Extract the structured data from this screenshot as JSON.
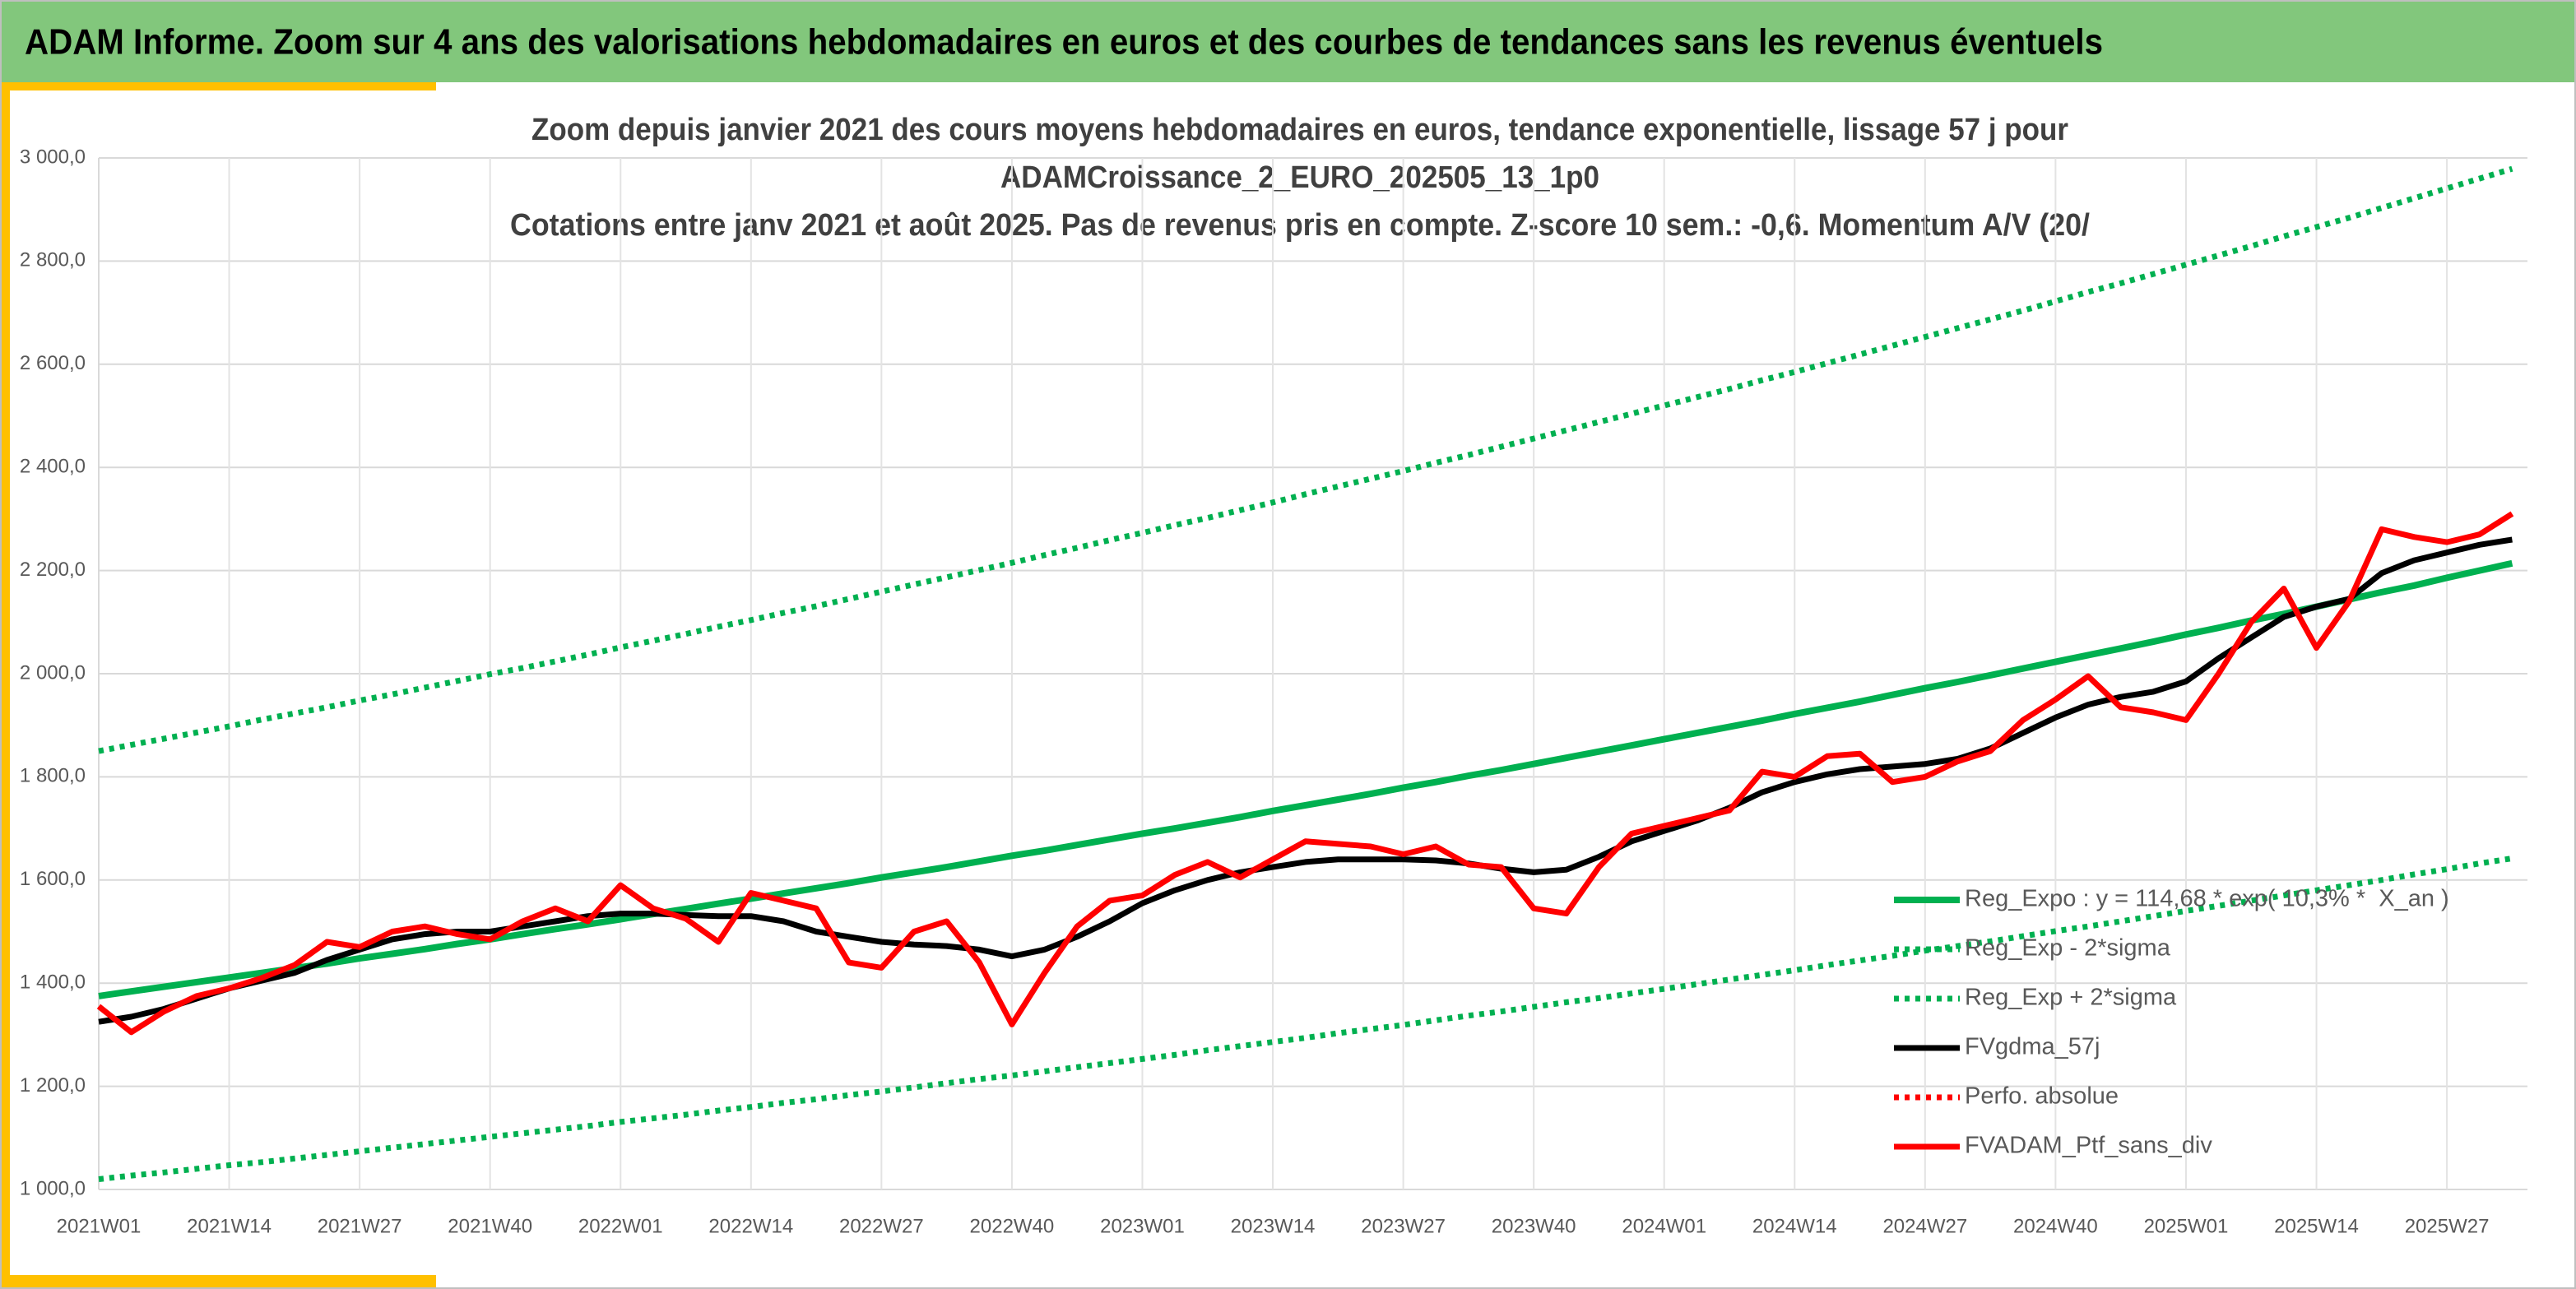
{
  "header": {
    "title": "ADAM Informe. Zoom sur 4 ans des valorisations hebdomadaires en euros et des courbes de tendances sans les revenus éventuels"
  },
  "chart_data": {
    "type": "line",
    "title": [
      "Zoom depuis janvier 2021 des cours moyens hebdomadaires en euros, tendance exponentielle, lissage 57 j pour",
      "ADAMCroissance_2_EURO_202505_13_1p0",
      "Cotations entre janv 2021 et août 2025. Pas de revenus pris en compte. Z-score 10 sem.: -0,6. Momentum A/V (20/"
    ],
    "categories": [
      "2021W01",
      null,
      null,
      null,
      "2021W14",
      null,
      null,
      null,
      "2021W27",
      null,
      null,
      null,
      "2021W40",
      null,
      null,
      null,
      "2022W01",
      null,
      null,
      null,
      "2022W14",
      null,
      null,
      null,
      "2022W27",
      null,
      null,
      null,
      "2022W40",
      null,
      null,
      null,
      "2023W01",
      null,
      null,
      null,
      "2023W14",
      null,
      null,
      null,
      "2023W27",
      null,
      null,
      null,
      "2023W40",
      null,
      null,
      null,
      "2024W01",
      null,
      null,
      null,
      "2024W14",
      null,
      null,
      null,
      "2024W27",
      null,
      null,
      null,
      "2024W40",
      null,
      null,
      null,
      "2025W01",
      null,
      null,
      null,
      "2025W14",
      null,
      null,
      null,
      "2025W27",
      null,
      null
    ],
    "ylim": [
      1000,
      3000
    ],
    "yticks": [
      {
        "value": 1000,
        "label": "1 000,0"
      },
      {
        "value": 1200,
        "label": "1 200,0"
      },
      {
        "value": 1400,
        "label": "1 400,0"
      },
      {
        "value": 1600,
        "label": "1 600,0"
      },
      {
        "value": 1800,
        "label": "1 800,0"
      },
      {
        "value": 2000,
        "label": "2 000,0"
      },
      {
        "value": 2200,
        "label": "2 200,0"
      },
      {
        "value": 2400,
        "label": "2 400,0"
      },
      {
        "value": 2600,
        "label": "2 600,0"
      },
      {
        "value": 2800,
        "label": "2 800,0"
      },
      {
        "value": 3000,
        "label": "3 000,0"
      }
    ],
    "grid": true,
    "legend": "lower right",
    "series": [
      {
        "name": "Reg_Expo : y = 114,68 * exp( 10,3% *  X_an )",
        "color": "#00b050",
        "style": "solid",
        "values": [
          1375,
          1384,
          1393,
          1402,
          1411,
          1420,
          1429,
          1438,
          1448,
          1457,
          1466,
          1476,
          1485,
          1495,
          1505,
          1514,
          1524,
          1534,
          1544,
          1554,
          1564,
          1574,
          1584,
          1594,
          1605,
          1615,
          1625,
          1636,
          1647,
          1657,
          1668,
          1679,
          1690,
          1700,
          1711,
          1722,
          1734,
          1745,
          1756,
          1767,
          1779,
          1790,
          1802,
          1813,
          1825,
          1837,
          1849,
          1861,
          1873,
          1885,
          1897,
          1909,
          1922,
          1934,
          1946,
          1959,
          1972,
          1984,
          1997,
          2010,
          2023,
          2036,
          2049,
          2062,
          2076,
          2089,
          2103,
          2116,
          2130,
          2144,
          2158,
          2171,
          2186,
          2200,
          2214
        ]
      },
      {
        "name": "Reg_Exp - 2*sigma",
        "color": "#00b050",
        "style": "dotted",
        "values": [
          1020,
          1027,
          1033,
          1040,
          1047,
          1053,
          1060,
          1067,
          1074,
          1081,
          1088,
          1095,
          1102,
          1109,
          1116,
          1123,
          1131,
          1138,
          1145,
          1153,
          1160,
          1168,
          1175,
          1183,
          1190,
          1198,
          1206,
          1214,
          1221,
          1229,
          1237,
          1245,
          1253,
          1261,
          1270,
          1278,
          1286,
          1294,
          1303,
          1311,
          1319,
          1328,
          1337,
          1345,
          1354,
          1363,
          1371,
          1380,
          1389,
          1398,
          1407,
          1416,
          1425,
          1435,
          1444,
          1453,
          1463,
          1472,
          1481,
          1491,
          1501,
          1510,
          1520,
          1530,
          1540,
          1550,
          1560,
          1570,
          1580,
          1590,
          1600,
          1611,
          1621,
          1632,
          1642
        ]
      },
      {
        "name": "Reg_Exp + 2*sigma",
        "color": "#00b050",
        "style": "dotted",
        "values": [
          1850,
          1862,
          1874,
          1886,
          1898,
          1911,
          1923,
          1935,
          1948,
          1960,
          1973,
          1986,
          1999,
          2011,
          2024,
          2037,
          2051,
          2064,
          2077,
          2091,
          2104,
          2118,
          2131,
          2145,
          2159,
          2173,
          2187,
          2201,
          2215,
          2230,
          2244,
          2259,
          2273,
          2288,
          2302,
          2317,
          2332,
          2348,
          2363,
          2378,
          2393,
          2409,
          2424,
          2440,
          2456,
          2472,
          2488,
          2504,
          2520,
          2536,
          2552,
          2569,
          2585,
          2602,
          2619,
          2636,
          2653,
          2670,
          2687,
          2704,
          2722,
          2740,
          2757,
          2775,
          2793,
          2811,
          2829,
          2848,
          2866,
          2884,
          2903,
          2922,
          2941,
          2960,
          2979
        ]
      },
      {
        "name": "FVgdma_57j",
        "color": "#000000",
        "style": "solid",
        "values": [
          1325,
          1335,
          1350,
          1370,
          1390,
          1405,
          1420,
          1445,
          1465,
          1485,
          1495,
          1500,
          1500,
          1510,
          1520,
          1530,
          1535,
          1535,
          1532,
          1530,
          1530,
          1520,
          1500,
          1490,
          1480,
          1475,
          1472,
          1465,
          1452,
          1465,
          1490,
          1520,
          1555,
          1580,
          1600,
          1615,
          1625,
          1635,
          1640,
          1640,
          1640,
          1638,
          1632,
          1622,
          1615,
          1620,
          1645,
          1675,
          1695,
          1715,
          1740,
          1770,
          1790,
          1805,
          1815,
          1820,
          1825,
          1835,
          1855,
          1885,
          1915,
          1940,
          1955,
          1965,
          1985,
          2030,
          2070,
          2110,
          2130,
          2145,
          2195,
          2220,
          2235,
          2250,
          2260
        ]
      },
      {
        "name": "Perfo. absolue",
        "color": "#ff0000",
        "style": "dotted"
      },
      {
        "name": "FVADAM_Ptf_sans_div",
        "color": "#ff0000",
        "style": "solid",
        "values": [
          1355,
          1305,
          1345,
          1375,
          1390,
          1410,
          1435,
          1480,
          1470,
          1500,
          1510,
          1495,
          1485,
          1520,
          1545,
          1520,
          1590,
          1545,
          1525,
          1480,
          1575,
          1560,
          1545,
          1440,
          1430,
          1500,
          1520,
          1440,
          1320,
          1420,
          1510,
          1560,
          1570,
          1610,
          1635,
          1605,
          1640,
          1675,
          1670,
          1665,
          1650,
          1665,
          1630,
          1625,
          1545,
          1535,
          1625,
          1690,
          1705,
          1720,
          1735,
          1810,
          1800,
          1840,
          1845,
          1790,
          1800,
          1830,
          1850,
          1910,
          1950,
          1995,
          1935,
          1925,
          1910,
          2000,
          2100,
          2165,
          2050,
          2140,
          2280,
          2265,
          2255,
          2270,
          2310
        ]
      }
    ]
  }
}
